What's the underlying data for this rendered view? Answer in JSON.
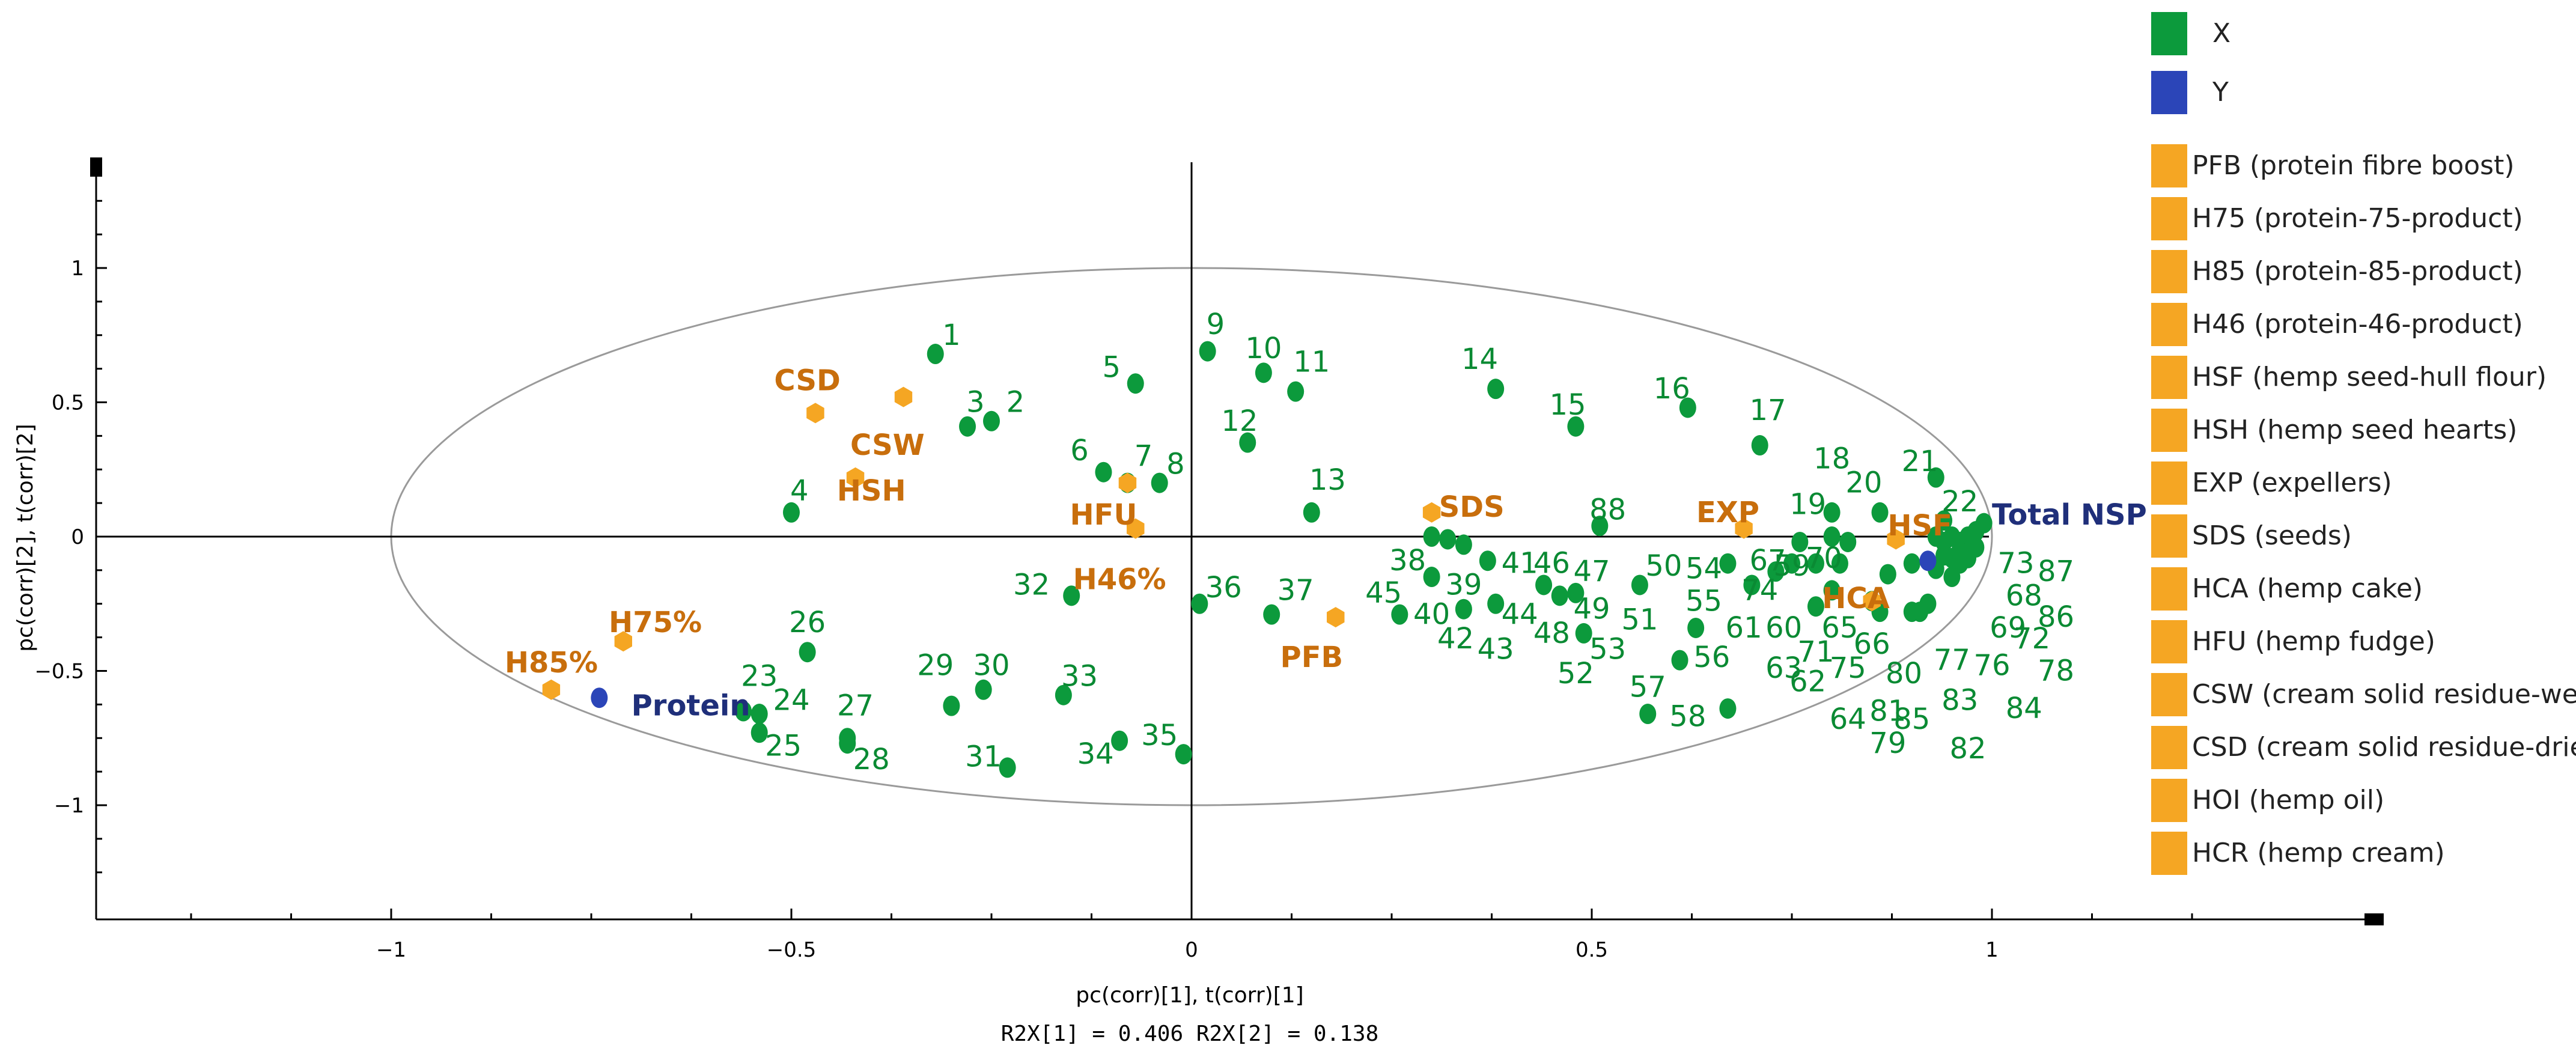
{
  "chart_data": {
    "type": "scatter",
    "title": "",
    "xlabel": "pc(corr)[1], t(corr)[1]",
    "ylabel": "pc(corr)[2], t(corr)[2]",
    "subtitle": "R2X[1] = 0.406 R2X[2] = 0.138",
    "xlim": [
      -1.4,
      1.4
    ],
    "ylim": [
      -1.4,
      1.4
    ],
    "x_ticks": [
      -1,
      -0.5,
      0,
      0.5,
      1
    ],
    "x_tick_labels": [
      "−1",
      "−0.5",
      "0",
      "0.5",
      "1"
    ],
    "y_ticks": [
      1,
      0.5,
      0,
      -0.5,
      -1
    ],
    "y_tick_labels": [
      "1",
      "0.5",
      "0",
      "−0.5",
      "−1"
    ],
    "ellipse": {
      "center": [
        0,
        0
      ],
      "radius_x": 1.0,
      "radius_y": 1.0
    },
    "colors": {
      "x_points": "#0c9a3c",
      "x_labels": "#0a8a33",
      "y_points": "#2b45b8",
      "y_labels": "#1f2f7a",
      "products": "#f5a623",
      "product_labels": "#c86e0c",
      "axis": "#000000",
      "ellipse": "#9a9a9a"
    },
    "legend": {
      "position": "right",
      "series": [
        {
          "label": "X",
          "color": "#0c9a3c"
        },
        {
          "label": "Y",
          "color": "#2b45b8"
        }
      ],
      "products": [
        "PFB (protein fibre boost)",
        "H75 (protein-75-product)",
        "H85 (protein-85-product)",
        "H46 (protein-46-product)",
        "HSF (hemp seed-hull flour)",
        "HSH (hemp seed hearts)",
        "EXP (expellers)",
        "SDS (seeds)",
        "HCA (hemp cake)",
        "HFU (hemp fudge)",
        "CSW (cream solid residue-wet)",
        "CSD (cream solid residue-dried)",
        "HOI (hemp oil)",
        "HCR (hemp cream)"
      ]
    },
    "x_variables": [
      {
        "label": "1",
        "x": -0.32,
        "y": 0.68
      },
      {
        "label": "2",
        "x": -0.25,
        "y": 0.43
      },
      {
        "label": "3",
        "x": -0.28,
        "y": 0.41
      },
      {
        "label": "4",
        "x": -0.5,
        "y": 0.09
      },
      {
        "label": "5",
        "x": -0.07,
        "y": 0.57
      },
      {
        "label": "6",
        "x": -0.11,
        "y": 0.24
      },
      {
        "label": "7",
        "x": -0.08,
        "y": 0.2
      },
      {
        "label": "8",
        "x": -0.04,
        "y": 0.2
      },
      {
        "label": "9",
        "x": 0.02,
        "y": 0.69
      },
      {
        "label": "10",
        "x": 0.09,
        "y": 0.61
      },
      {
        "label": "11",
        "x": 0.13,
        "y": 0.54
      },
      {
        "label": "12",
        "x": 0.07,
        "y": 0.35
      },
      {
        "label": "13",
        "x": 0.15,
        "y": 0.09
      },
      {
        "label": "14",
        "x": 0.38,
        "y": 0.55
      },
      {
        "label": "15",
        "x": 0.48,
        "y": 0.41
      },
      {
        "label": "16",
        "x": 0.62,
        "y": 0.48
      },
      {
        "label": "17",
        "x": 0.71,
        "y": 0.34
      },
      {
        "label": "18",
        "x": 0.8,
        "y": 0.09
      },
      {
        "label": "19",
        "x": 0.8,
        "y": 0.0
      },
      {
        "label": "20",
        "x": 0.86,
        "y": 0.09
      },
      {
        "label": "21",
        "x": 0.93,
        "y": 0.22
      },
      {
        "label": "22",
        "x": 0.94,
        "y": 0.06
      },
      {
        "label": "23",
        "x": -0.56,
        "y": -0.65
      },
      {
        "label": "24",
        "x": -0.54,
        "y": -0.66
      },
      {
        "label": "25",
        "x": -0.54,
        "y": -0.73
      },
      {
        "label": "26",
        "x": -0.48,
        "y": -0.43
      },
      {
        "label": "27",
        "x": -0.43,
        "y": -0.75
      },
      {
        "label": "28",
        "x": -0.43,
        "y": -0.77
      },
      {
        "label": "29",
        "x": -0.3,
        "y": -0.63
      },
      {
        "label": "30",
        "x": -0.26,
        "y": -0.57
      },
      {
        "label": "31",
        "x": -0.23,
        "y": -0.86
      },
      {
        "label": "32",
        "x": -0.15,
        "y": -0.22
      },
      {
        "label": "33",
        "x": -0.16,
        "y": -0.59
      },
      {
        "label": "34",
        "x": -0.09,
        "y": -0.76
      },
      {
        "label": "35",
        "x": -0.01,
        "y": -0.81
      },
      {
        "label": "36",
        "x": 0.01,
        "y": -0.25
      },
      {
        "label": "37",
        "x": 0.1,
        "y": -0.29
      },
      {
        "label": "38",
        "x": 0.3,
        "y": 0.0
      },
      {
        "label": "39",
        "x": 0.32,
        "y": -0.01
      },
      {
        "label": "40",
        "x": 0.26,
        "y": -0.29
      },
      {
        "label": "41",
        "x": 0.3,
        "y": -0.15
      },
      {
        "label": "42",
        "x": 0.34,
        "y": -0.03
      },
      {
        "label": "43",
        "x": 0.34,
        "y": -0.27
      },
      {
        "label": "44",
        "x": 0.37,
        "y": -0.09
      },
      {
        "label": "45",
        "x": 0.38,
        "y": -0.25
      },
      {
        "label": "46",
        "x": 0.44,
        "y": -0.18
      },
      {
        "label": "47",
        "x": 0.46,
        "y": -0.22
      },
      {
        "label": "48",
        "x": 0.48,
        "y": -0.21
      },
      {
        "label": "49",
        "x": 0.49,
        "y": -0.36
      },
      {
        "label": "50",
        "x": 0.56,
        "y": -0.18
      },
      {
        "label": "51",
        "x": 0.61,
        "y": -0.46
      },
      {
        "label": "52",
        "x": 0.57,
        "y": -0.66
      },
      {
        "label": "53",
        "x": 0.63,
        "y": -0.34
      },
      {
        "label": "54",
        "x": 0.67,
        "y": -0.64
      },
      {
        "label": "55",
        "x": 0.67,
        "y": -0.1
      },
      {
        "label": "56",
        "x": 0.7,
        "y": -0.18
      },
      {
        "label": "57",
        "x": 0.73,
        "y": -0.13
      },
      {
        "label": "58",
        "x": 0.75,
        "y": -0.1
      },
      {
        "label": "59",
        "x": 0.76,
        "y": -0.02
      },
      {
        "label": "60",
        "x": 0.78,
        "y": -0.1
      },
      {
        "label": "61",
        "x": 0.78,
        "y": -0.26
      },
      {
        "label": "62",
        "x": 0.8,
        "y": -0.2
      },
      {
        "label": "63",
        "x": 0.81,
        "y": -0.1
      },
      {
        "label": "64",
        "x": 0.82,
        "y": -0.02
      },
      {
        "label": "65",
        "x": 0.85,
        "y": -0.24
      },
      {
        "label": "66",
        "x": 0.86,
        "y": -0.28
      },
      {
        "label": "67",
        "x": 0.87,
        "y": -0.14
      },
      {
        "label": "68",
        "x": 0.9,
        "y": -0.1
      },
      {
        "label": "69",
        "x": 0.91,
        "y": -0.28
      },
      {
        "label": "70",
        "x": 0.92,
        "y": -0.25
      },
      {
        "label": "71",
        "x": 0.94,
        "y": -0.07
      },
      {
        "label": "72",
        "x": 0.95,
        "y": -0.15
      },
      {
        "label": "73",
        "x": 0.96,
        "y": -0.02
      },
      {
        "label": "74",
        "x": 0.97,
        "y": -0.08
      },
      {
        "label": "75",
        "x": 0.93,
        "y": -0.12
      },
      {
        "label": "76",
        "x": 0.95,
        "y": -0.08
      },
      {
        "label": "77",
        "x": 0.93,
        "y": 0.0
      },
      {
        "label": "78",
        "x": 0.97,
        "y": 0.0
      },
      {
        "label": "79",
        "x": 0.98,
        "y": 0.02
      },
      {
        "label": "80",
        "x": 0.99,
        "y": 0.05
      },
      {
        "label": "81",
        "x": 0.96,
        "y": -0.05
      },
      {
        "label": "82",
        "x": 0.94,
        "y": -0.02
      },
      {
        "label": "83",
        "x": 0.98,
        "y": -0.04
      },
      {
        "label": "84",
        "x": 0.96,
        "y": -0.1
      },
      {
        "label": "85",
        "x": 0.9,
        "y": -0.28
      },
      {
        "label": "86",
        "x": 0.95,
        "y": 0.0
      },
      {
        "label": "87",
        "x": 0.97,
        "y": -0.06
      },
      {
        "label": "88",
        "x": 0.51,
        "y": 0.04
      }
    ],
    "label_anchors": [
      {
        "label": "1",
        "x": -0.3,
        "y": 0.75
      },
      {
        "label": "2",
        "x": -0.22,
        "y": 0.5
      },
      {
        "label": "3",
        "x": -0.27,
        "y": 0.5
      },
      {
        "label": "4",
        "x": -0.49,
        "y": 0.17
      },
      {
        "label": "5",
        "x": -0.1,
        "y": 0.63
      },
      {
        "label": "6",
        "x": -0.14,
        "y": 0.32
      },
      {
        "label": "7",
        "x": -0.06,
        "y": 0.3
      },
      {
        "label": "8",
        "x": -0.02,
        "y": 0.27
      },
      {
        "label": "9",
        "x": 0.03,
        "y": 0.79
      },
      {
        "label": "10",
        "x": 0.09,
        "y": 0.7
      },
      {
        "label": "11",
        "x": 0.15,
        "y": 0.65
      },
      {
        "label": "12",
        "x": 0.06,
        "y": 0.43
      },
      {
        "label": "13",
        "x": 0.17,
        "y": 0.21
      },
      {
        "label": "14",
        "x": 0.36,
        "y": 0.66
      },
      {
        "label": "15",
        "x": 0.47,
        "y": 0.49
      },
      {
        "label": "16",
        "x": 0.6,
        "y": 0.55
      },
      {
        "label": "17",
        "x": 0.72,
        "y": 0.47
      },
      {
        "label": "18",
        "x": 0.8,
        "y": 0.29
      },
      {
        "label": "19",
        "x": 0.77,
        "y": 0.12
      },
      {
        "label": "20",
        "x": 0.84,
        "y": 0.2
      },
      {
        "label": "21",
        "x": 0.91,
        "y": 0.28
      },
      {
        "label": "22",
        "x": 0.96,
        "y": 0.13
      },
      {
        "label": "23",
        "x": -0.54,
        "y": -0.52
      },
      {
        "label": "24",
        "x": -0.5,
        "y": -0.61
      },
      {
        "label": "25",
        "x": -0.51,
        "y": -0.78
      },
      {
        "label": "26",
        "x": -0.48,
        "y": -0.32
      },
      {
        "label": "27",
        "x": -0.42,
        "y": -0.63
      },
      {
        "label": "28",
        "x": -0.4,
        "y": -0.83
      },
      {
        "label": "29",
        "x": -0.32,
        "y": -0.48
      },
      {
        "label": "30",
        "x": -0.25,
        "y": -0.48
      },
      {
        "label": "31",
        "x": -0.26,
        "y": -0.82
      },
      {
        "label": "32",
        "x": -0.2,
        "y": -0.18
      },
      {
        "label": "33",
        "x": -0.14,
        "y": -0.52
      },
      {
        "label": "34",
        "x": -0.12,
        "y": -0.81
      },
      {
        "label": "35",
        "x": -0.04,
        "y": -0.74
      },
      {
        "label": "36",
        "x": 0.04,
        "y": -0.19
      },
      {
        "label": "37",
        "x": 0.13,
        "y": -0.2
      },
      {
        "label": "38",
        "x": 0.27,
        "y": -0.09
      },
      {
        "label": "39",
        "x": 0.34,
        "y": -0.18
      },
      {
        "label": "40",
        "x": 0.3,
        "y": -0.29
      },
      {
        "label": "41",
        "x": 0.41,
        "y": -0.1
      },
      {
        "label": "42",
        "x": 0.33,
        "y": -0.38
      },
      {
        "label": "43",
        "x": 0.38,
        "y": -0.42
      },
      {
        "label": "44",
        "x": 0.41,
        "y": -0.29
      },
      {
        "label": "45",
        "x": 0.24,
        "y": -0.21
      },
      {
        "label": "46",
        "x": 0.45,
        "y": -0.1
      },
      {
        "label": "47",
        "x": 0.5,
        "y": -0.13
      },
      {
        "label": "48",
        "x": 0.45,
        "y": -0.36
      },
      {
        "label": "49",
        "x": 0.5,
        "y": -0.27
      },
      {
        "label": "50",
        "x": 0.59,
        "y": -0.11
      },
      {
        "label": "51",
        "x": 0.56,
        "y": -0.31
      },
      {
        "label": "52",
        "x": 0.48,
        "y": -0.51
      },
      {
        "label": "53",
        "x": 0.52,
        "y": -0.42
      },
      {
        "label": "54",
        "x": 0.64,
        "y": -0.12
      },
      {
        "label": "55",
        "x": 0.64,
        "y": -0.24
      },
      {
        "label": "56",
        "x": 0.65,
        "y": -0.45
      },
      {
        "label": "57",
        "x": 0.57,
        "y": -0.56
      },
      {
        "label": "58",
        "x": 0.62,
        "y": -0.67
      },
      {
        "label": "59",
        "x": 0.75,
        "y": -0.11
      },
      {
        "label": "60",
        "x": 0.74,
        "y": -0.34
      },
      {
        "label": "61",
        "x": 0.69,
        "y": -0.34
      },
      {
        "label": "62",
        "x": 0.77,
        "y": -0.54
      },
      {
        "label": "63",
        "x": 0.74,
        "y": -0.49
      },
      {
        "label": "64",
        "x": 0.82,
        "y": -0.68
      },
      {
        "label": "65",
        "x": 0.81,
        "y": -0.34
      },
      {
        "label": "66",
        "x": 0.85,
        "y": -0.4
      },
      {
        "label": "67",
        "x": 0.72,
        "y": -0.09
      },
      {
        "label": "68",
        "x": 1.04,
        "y": -0.22
      },
      {
        "label": "69",
        "x": 1.02,
        "y": -0.34
      },
      {
        "label": "70",
        "x": 0.79,
        "y": -0.08
      },
      {
        "label": "71",
        "x": 0.78,
        "y": -0.43
      },
      {
        "label": "72",
        "x": 1.05,
        "y": -0.38
      },
      {
        "label": "73",
        "x": 1.03,
        "y": -0.1
      },
      {
        "label": "74",
        "x": 0.71,
        "y": -0.2
      },
      {
        "label": "75",
        "x": 0.82,
        "y": -0.49
      },
      {
        "label": "76",
        "x": 1.0,
        "y": -0.48
      },
      {
        "label": "77",
        "x": 0.95,
        "y": -0.46
      },
      {
        "label": "78",
        "x": 1.08,
        "y": -0.5
      },
      {
        "label": "79",
        "x": 0.87,
        "y": -0.77
      },
      {
        "label": "80",
        "x": 0.89,
        "y": -0.51
      },
      {
        "label": "81",
        "x": 0.87,
        "y": -0.65
      },
      {
        "label": "82",
        "x": 0.97,
        "y": -0.79
      },
      {
        "label": "83",
        "x": 0.96,
        "y": -0.61
      },
      {
        "label": "84",
        "x": 1.04,
        "y": -0.64
      },
      {
        "label": "85",
        "x": 0.9,
        "y": -0.68
      },
      {
        "label": "86",
        "x": 1.08,
        "y": -0.3
      },
      {
        "label": "87",
        "x": 1.08,
        "y": -0.13
      },
      {
        "label": "88",
        "x": 0.52,
        "y": 0.1
      }
    ],
    "y_variables": [
      {
        "label": "Protein",
        "x": -0.74,
        "y": -0.6,
        "label_x": -0.7,
        "label_y": -0.63
      },
      {
        "label": "Total NSP",
        "x": 0.92,
        "y": -0.09,
        "label_x": 1.0,
        "label_y": 0.08
      }
    ],
    "product_points": [
      {
        "label": "CSD",
        "x": -0.47,
        "y": 0.46,
        "label_x": -0.48,
        "label_y": 0.58
      },
      {
        "label": "CSW",
        "x": -0.36,
        "y": 0.52,
        "label_x": -0.38,
        "label_y": 0.34
      },
      {
        "label": "HSH",
        "x": -0.42,
        "y": 0.22,
        "label_x": -0.4,
        "label_y": 0.17
      },
      {
        "label": "HFU",
        "x": -0.08,
        "y": 0.2,
        "label_x": -0.11,
        "label_y": 0.08
      },
      {
        "label": "H46%",
        "x": -0.07,
        "y": 0.03,
        "label_x": -0.09,
        "label_y": -0.16
      },
      {
        "label": "H75%",
        "x": -0.71,
        "y": -0.39,
        "label_x": -0.67,
        "label_y": -0.32
      },
      {
        "label": "H85%",
        "x": -0.8,
        "y": -0.57,
        "label_x": -0.8,
        "label_y": -0.47
      },
      {
        "label": "SDS",
        "x": 0.3,
        "y": 0.09,
        "label_x": 0.35,
        "label_y": 0.11
      },
      {
        "label": "PFB",
        "x": 0.18,
        "y": -0.3,
        "label_x": 0.15,
        "label_y": -0.45
      },
      {
        "label": "EXP",
        "x": 0.69,
        "y": 0.03,
        "label_x": 0.67,
        "label_y": 0.09
      },
      {
        "label": "HSF",
        "x": 0.88,
        "y": -0.01,
        "label_x": 0.91,
        "label_y": 0.04
      },
      {
        "label": "HCA",
        "x": 0.85,
        "y": -0.24,
        "label_x": 0.83,
        "label_y": -0.23
      }
    ]
  }
}
